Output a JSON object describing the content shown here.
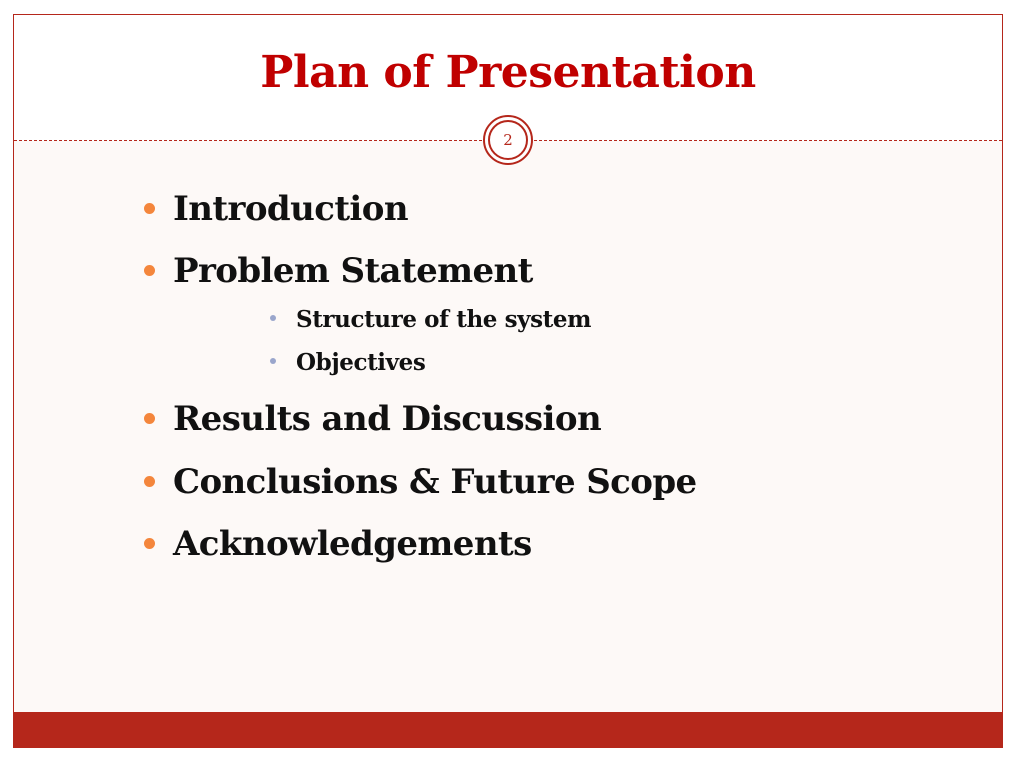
{
  "slide": {
    "title": "Plan of Presentation",
    "slide_number": "2",
    "bullets": [
      {
        "text": "Introduction",
        "level": 1
      },
      {
        "text": "Problem Statement",
        "level": 1
      },
      {
        "text": "Structure of the system",
        "level": 2
      },
      {
        "text": "Objectives",
        "level": 2
      },
      {
        "text": "Results and Discussion",
        "level": 1
      },
      {
        "text": "Conclusions & Future Scope",
        "level": 1
      },
      {
        "text": "Acknowledgements",
        "level": 1
      }
    ]
  },
  "colors": {
    "title": "#c00000",
    "accent": "#b5271b",
    "bullet_primary": "#f4863c",
    "bullet_secondary": "#9aa6cc",
    "content_background": "#fdf9f7"
  }
}
